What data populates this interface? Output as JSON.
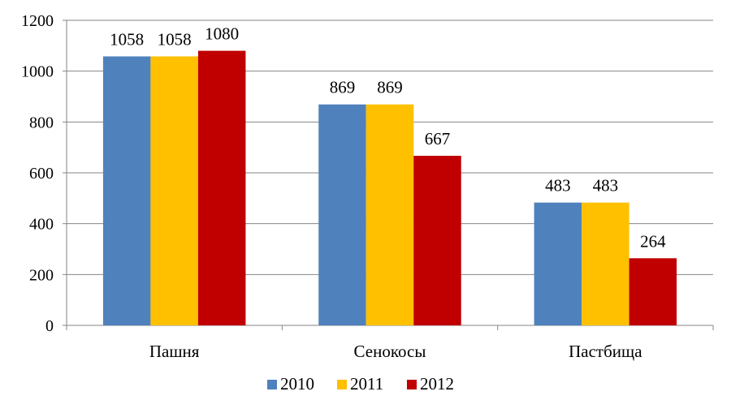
{
  "chart_data": {
    "type": "bar",
    "categories": [
      "Пашня",
      "Сенокосы",
      "Пастбища"
    ],
    "series": [
      {
        "name": "2010",
        "values": [
          1058,
          869,
          483
        ],
        "color": "#4F81BD"
      },
      {
        "name": "2011",
        "values": [
          1058,
          869,
          483
        ],
        "color": "#FFC000"
      },
      {
        "name": "2012",
        "values": [
          1080,
          667,
          264
        ],
        "color": "#C00000"
      }
    ],
    "ylim": [
      0,
      1200
    ],
    "yticks": [
      0,
      200,
      400,
      600,
      800,
      1000,
      1200
    ],
    "grid": true,
    "legend": "bottom",
    "title": "",
    "xlabel": "",
    "ylabel": ""
  }
}
